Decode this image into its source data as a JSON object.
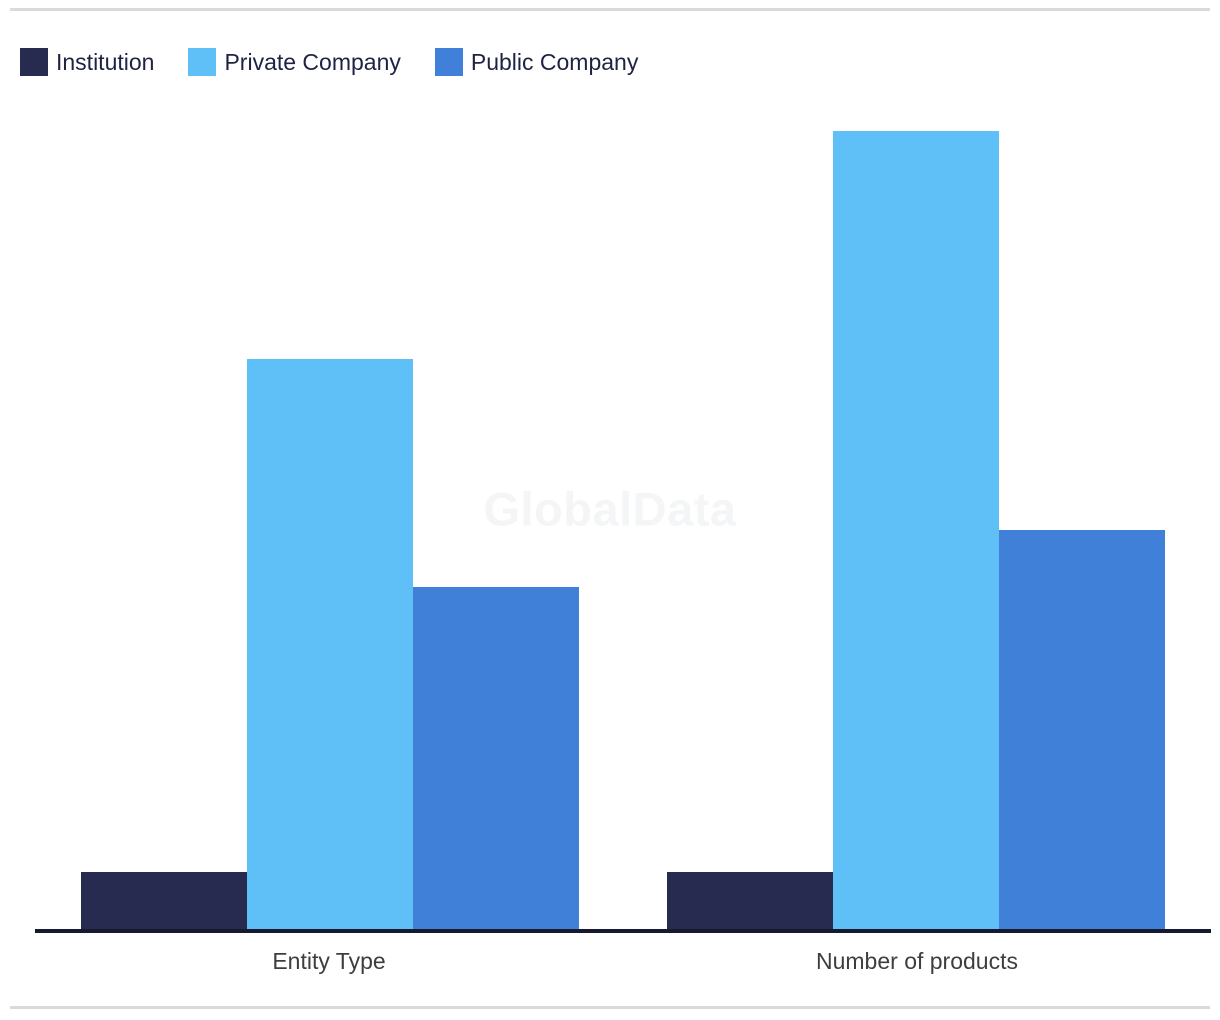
{
  "watermark": {
    "text": "GlobalData"
  },
  "chart_data": {
    "type": "bar",
    "title": "",
    "xlabel": "",
    "ylabel": "",
    "categories": [
      "Entity Type",
      "Number of products"
    ],
    "series": [
      {
        "name": "Institution",
        "color": "#272b50",
        "values": [
          1,
          1
        ]
      },
      {
        "name": "Private Company",
        "color": "#5fc0f7",
        "values": [
          10,
          14
        ]
      },
      {
        "name": "Public Company",
        "color": "#4080d8",
        "values": [
          6,
          7
        ]
      }
    ],
    "ylim": [
      0,
      14.6
    ],
    "y_axis_visible": false,
    "grid": false,
    "legend_position": "top-left",
    "bar_unit_note": "no y-axis labels shown; values inferred from bar heights (57px per unit)"
  },
  "colors": {
    "axis_line": "#171a2e",
    "x_label_text": "#3e3e3e",
    "legend_text": "#1f2243",
    "divider": "#dadada",
    "watermark_text": "#f4f5f6",
    "background": "#ffffff"
  }
}
